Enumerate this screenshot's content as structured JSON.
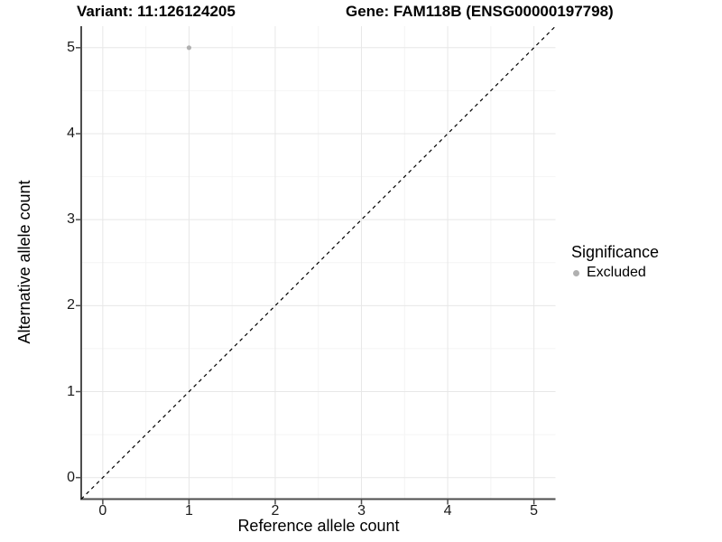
{
  "titles": {
    "variant": "Variant: 11:126124205",
    "gene": "Gene: FAM118B (ENSG00000197798)"
  },
  "legend": {
    "title": "Significance",
    "items": [
      {
        "label": "Excluded",
        "color": "#b0b0b0"
      }
    ]
  },
  "chart_data": {
    "type": "scatter",
    "title_left": "Variant: 11:126124205",
    "title_right": "Gene: FAM118B (ENSG00000197798)",
    "xlabel": "Reference allele count",
    "ylabel": "Alternative allele count",
    "xlim": [
      -0.25,
      5.25
    ],
    "ylim": [
      -0.25,
      5.25
    ],
    "x_ticks": [
      0,
      1,
      2,
      3,
      4,
      5
    ],
    "y_ticks": [
      0,
      1,
      2,
      3,
      4,
      5
    ],
    "x_minor": [
      0.5,
      1.5,
      2.5,
      3.5,
      4.5
    ],
    "y_minor": [
      0.5,
      1.5,
      2.5,
      3.5,
      4.5
    ],
    "grid": "major-and-minor",
    "legend_position": "right",
    "series": [
      {
        "name": "Excluded",
        "color": "#b0b0b0",
        "points": [
          {
            "x": 1,
            "y": 5
          }
        ]
      }
    ],
    "reference_line": {
      "kind": "identity",
      "x1": -0.25,
      "y1": -0.25,
      "x2": 5.25,
      "y2": 5.25,
      "style": "dashed",
      "color": "#000000"
    },
    "colors": {
      "major_grid": "#e7e7e7",
      "minor_grid": "#f4f4f4",
      "axis_line": "#4d4d4d",
      "tick_mark": "#4d4d4d",
      "tick_text": "#1a1a1a",
      "background": "#ffffff"
    }
  }
}
